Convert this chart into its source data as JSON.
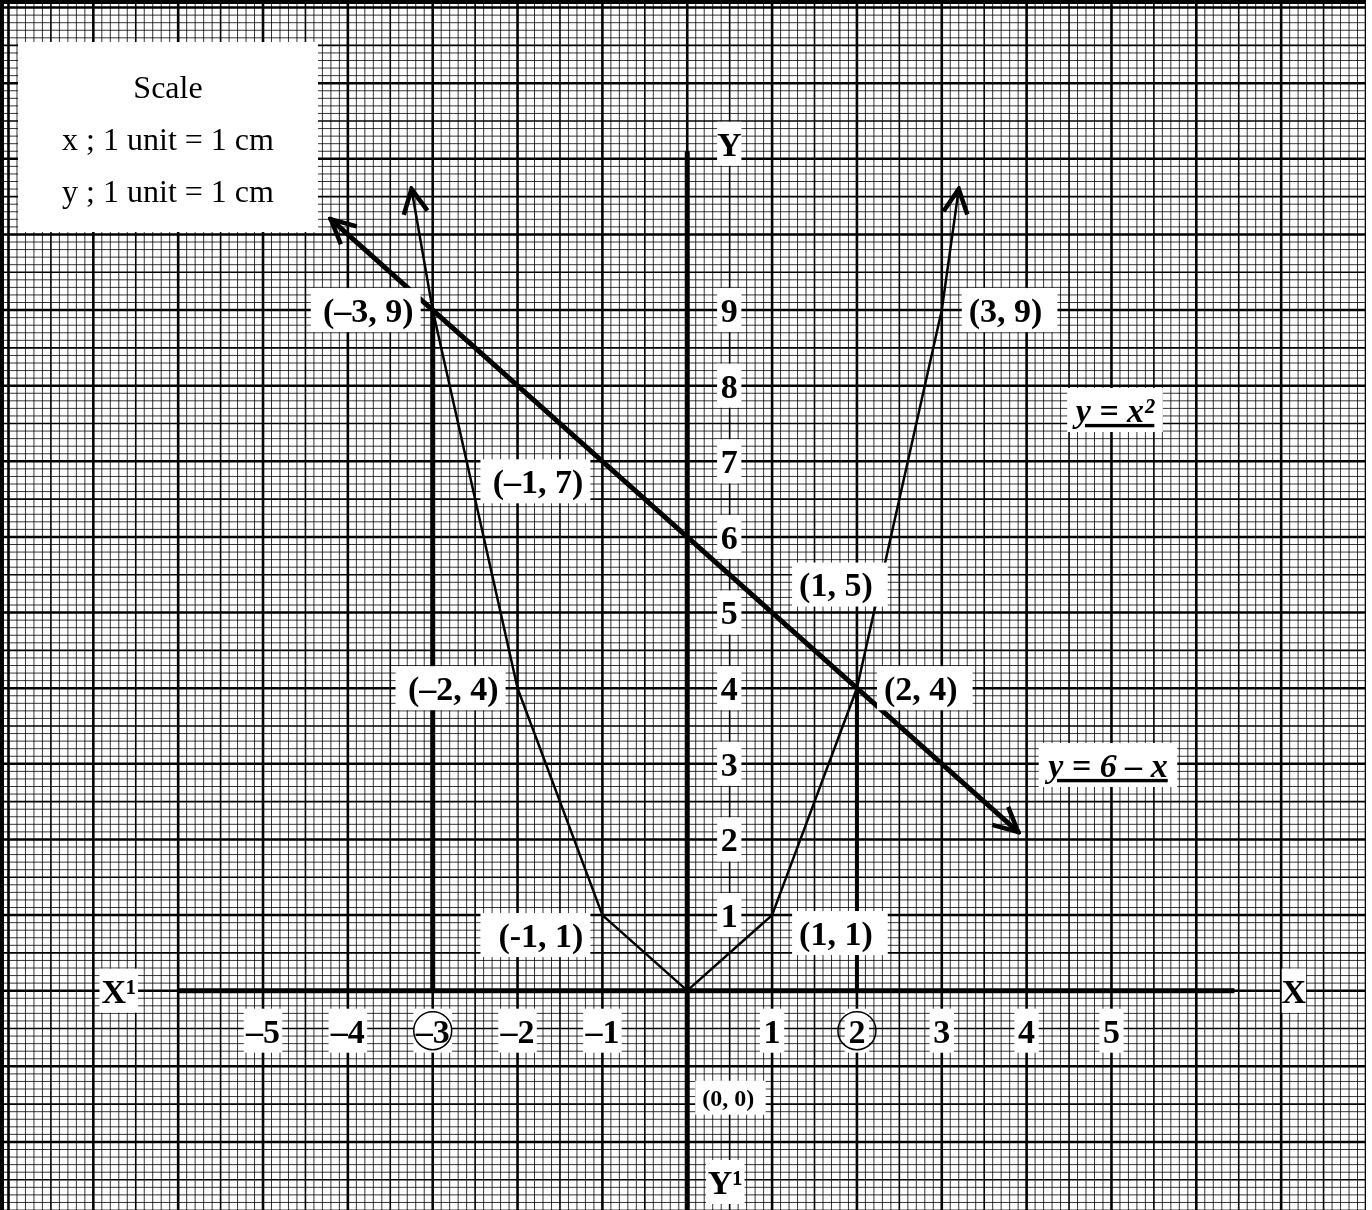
{
  "chart_data": {
    "type": "line",
    "xlabel": "X",
    "ylabel": "Y",
    "xlim": [
      -8.1,
      8
    ],
    "ylim": [
      -2.9,
      13.1
    ],
    "xticks": [
      {
        "value": -5,
        "label": "–5"
      },
      {
        "value": -4,
        "label": "–4"
      },
      {
        "value": -3,
        "label": "–3"
      },
      {
        "value": -2,
        "label": "–2"
      },
      {
        "value": -1,
        "label": "–1"
      },
      1,
      2,
      3,
      4,
      5
    ],
    "yticks": [
      1,
      2,
      3,
      4,
      5,
      6,
      7,
      8,
      9
    ],
    "grid": true,
    "marker": "none",
    "series": [
      {
        "name": "y = x²",
        "color": "#000000",
        "x": [
          -3.25,
          -3,
          -2,
          -1,
          0,
          1,
          2,
          3,
          3.2
        ],
        "values": [
          10.6,
          9,
          4,
          1,
          0,
          1,
          4,
          9,
          10.6
        ]
      },
      {
        "name": "y = 6 – x",
        "color": "#000000",
        "x": [
          -4.2,
          -3,
          -1,
          1,
          2,
          3.9
        ],
        "values": [
          10.2,
          9,
          7,
          5,
          4,
          2.1
        ]
      },
      {
        "color": "#000000",
        "x": [
          -3,
          -3
        ],
        "values": [
          0,
          9
        ]
      },
      {
        "color": "#000000",
        "x": [
          2,
          2
        ],
        "values": [
          0,
          4
        ]
      }
    ],
    "annotations": [
      "Scale",
      "x ; 1 unit = 1 cm",
      "y ; 1 unit = 1 cm",
      "X¹",
      "Y¹",
      {
        "text": "(–3, 9)",
        "x": -3,
        "y": 9
      },
      {
        "text": "(3, 9)",
        "x": 3,
        "y": 9
      },
      {
        "text": "(–1, 7)",
        "x": -1,
        "y": 7
      },
      {
        "text": "(1, 5)",
        "x": 1,
        "y": 5
      },
      {
        "text": "(–2, 4)",
        "x": -2,
        "y": 4
      },
      {
        "text": "(2, 4)",
        "x": 2,
        "y": 4
      },
      {
        "text": "(-1, 1)",
        "x": -1,
        "y": 1
      },
      {
        "text": "(1, 1)",
        "x": 1,
        "y": 1
      },
      "(0, 0)"
    ]
  }
}
